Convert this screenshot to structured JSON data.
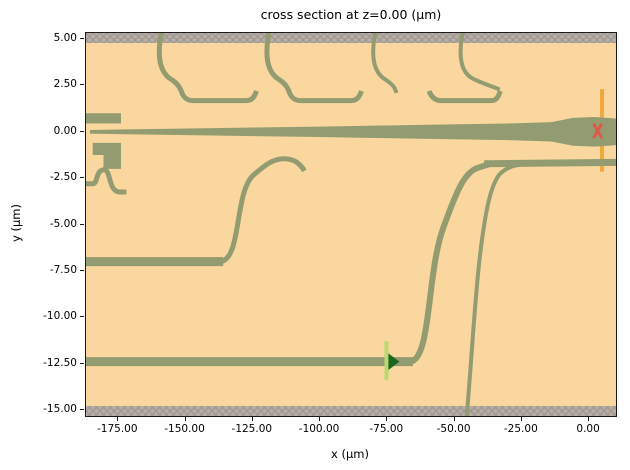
{
  "chart_data": {
    "type": "geometry-cross-section",
    "title": "cross section at z=0.00 (μm)",
    "xlabel": "x (μm)",
    "ylabel": "y (μm)",
    "xlim": [
      -187,
      10
    ],
    "ylim": [
      -15.33,
      5.33
    ],
    "grid": false,
    "x_ticks": [
      {
        "v": -175,
        "label": "-175.00"
      },
      {
        "v": -150,
        "label": "-150.00"
      },
      {
        "v": -125,
        "label": "-125.00"
      },
      {
        "v": -100,
        "label": "-100.00"
      },
      {
        "v": -75,
        "label": "-75.00"
      },
      {
        "v": -50,
        "label": "-50.00"
      },
      {
        "v": -25,
        "label": "-25.00"
      },
      {
        "v": 0,
        "label": "0.00"
      }
    ],
    "y_ticks": [
      {
        "v": 5,
        "label": "5.00"
      },
      {
        "v": 2.5,
        "label": "2.50"
      },
      {
        "v": 0,
        "label": "0.00"
      },
      {
        "v": -2.5,
        "label": "-2.50"
      },
      {
        "v": -5,
        "label": "-5.00"
      },
      {
        "v": -7.5,
        "label": "-7.50"
      },
      {
        "v": -10,
        "label": "-10.00"
      },
      {
        "v": -12.5,
        "label": "-12.50"
      },
      {
        "v": -15,
        "label": "-15.00"
      }
    ],
    "colors": {
      "background": "#f9d79e",
      "structure": "#939b70",
      "pml_fill": "#b6ada6",
      "pml_hatch": "#9d948d",
      "source_line": "#bbda6e",
      "source_arrow": "#1e651e",
      "monitor_line": "#f3a73d",
      "monitor_marker": "#dd5a4a",
      "axis": "#1a1a1a"
    },
    "pml_regions": [
      {
        "y_top": 5.33,
        "y_bot": 4.79
      },
      {
        "y_top": -14.79,
        "y_bot": -15.33
      }
    ],
    "shapes": [
      {
        "name": "top-sbend-1",
        "kind": "path",
        "w": 5,
        "segs": [
          [
            "M",
            -159,
            5.33
          ],
          [
            "C",
            -160.5,
            4.2,
            -160,
            3.2,
            -155,
            2.8
          ],
          [
            "C",
            -152.5,
            2.55,
            -151.8,
            2.3,
            -151.2,
            2.05
          ],
          [
            "C",
            -150.3,
            1.78,
            -149,
            1.68,
            -147,
            1.68
          ],
          [
            "L",
            -127.5,
            1.68
          ],
          [
            "C",
            -125.5,
            1.68,
            -124.6,
            1.82,
            -123.6,
            2.2
          ]
        ]
      },
      {
        "name": "top-sbend-2",
        "kind": "path",
        "w": 5,
        "segs": [
          [
            "M",
            -119,
            5.33
          ],
          [
            "C",
            -120.5,
            4.2,
            -120,
            3.2,
            -115,
            2.8
          ],
          [
            "C",
            -112.5,
            2.55,
            -111.8,
            2.3,
            -111.2,
            2.05
          ],
          [
            "C",
            -110.3,
            1.78,
            -109,
            1.68,
            -107,
            1.68
          ],
          [
            "L",
            -88.5,
            1.68
          ],
          [
            "C",
            -86.5,
            1.68,
            -85.6,
            1.82,
            -84.6,
            2.2
          ]
        ]
      },
      {
        "name": "top-sbend-3",
        "kind": "path",
        "w": 4,
        "segs": [
          [
            "M",
            -79.5,
            5.33
          ],
          [
            "C",
            -81,
            4.2,
            -80.5,
            3.2,
            -75.5,
            2.8
          ],
          [
            "C",
            -73,
            2.55,
            -72.2,
            2.4,
            -71.6,
            2.1
          ]
        ]
      },
      {
        "name": "coupler-bracket",
        "kind": "path",
        "w": 5,
        "segs": [
          [
            "M",
            -59.5,
            2.2
          ],
          [
            "C",
            -58.5,
            1.82,
            -57,
            1.68,
            -55,
            1.68
          ],
          [
            "L",
            -36.5,
            1.68
          ],
          [
            "C",
            -34.6,
            1.68,
            -33.8,
            1.85,
            -33,
            2.2
          ]
        ]
      },
      {
        "name": "top-sbend-4",
        "kind": "path",
        "w": 4,
        "segs": [
          [
            "M",
            -47,
            5.33
          ],
          [
            "C",
            -48.5,
            4.2,
            -48,
            3.2,
            -43,
            2.85
          ],
          [
            "C",
            -39.5,
            2.6,
            -36,
            2.45,
            -33.2,
            2.28
          ]
        ]
      },
      {
        "name": "left-stub",
        "kind": "polygon",
        "pts": [
          [
            -187,
            1.0
          ],
          [
            -174,
            1.0
          ],
          [
            -174,
            0.45
          ],
          [
            -187,
            0.45
          ]
        ]
      },
      {
        "name": "central-taper",
        "kind": "polygon",
        "pts": [
          [
            -185.5,
            0.1
          ],
          [
            -140,
            0.2
          ],
          [
            -100,
            0.28
          ],
          [
            -60,
            0.38
          ],
          [
            -30,
            0.45
          ],
          [
            -14,
            0.52
          ],
          [
            -6,
            0.75
          ],
          [
            2,
            0.8
          ],
          [
            10,
            0.72
          ],
          [
            10,
            -0.72
          ],
          [
            2,
            -0.8
          ],
          [
            -6,
            -0.75
          ],
          [
            -14,
            -0.52
          ],
          [
            -30,
            -0.45
          ],
          [
            -60,
            -0.38
          ],
          [
            -100,
            -0.28
          ],
          [
            -140,
            -0.2
          ],
          [
            -185.5,
            -0.1
          ]
        ]
      },
      {
        "name": "left-block",
        "kind": "polygon",
        "pts": [
          [
            -184.5,
            -0.6
          ],
          [
            -174,
            -0.6
          ],
          [
            -174,
            -2.0
          ],
          [
            -180.5,
            -2.0
          ],
          [
            -180.5,
            -1.25
          ],
          [
            -184.5,
            -1.25
          ]
        ]
      },
      {
        "name": "left-squiggle",
        "kind": "path",
        "w": 5,
        "segs": [
          [
            "M",
            -187,
            -2.8
          ],
          [
            "L",
            -184.5,
            -2.8
          ],
          [
            "C",
            -182.5,
            -2.8,
            -183.5,
            -2.1,
            -180.5,
            -2.05
          ],
          [
            "C",
            -177.5,
            -2.0,
            -179,
            -3.2,
            -174.5,
            -3.25
          ],
          [
            "L",
            -172,
            -3.25
          ]
        ]
      },
      {
        "name": "bus-waveguide-mid",
        "kind": "path",
        "w": 9,
        "segs": [
          [
            "M",
            -187,
            -7
          ],
          [
            "L",
            -136,
            -7
          ]
        ]
      },
      {
        "name": "mid-sbend",
        "kind": "path",
        "w": 5,
        "segs": [
          [
            "M",
            -137,
            -7
          ],
          [
            "C",
            -129,
            -6.85,
            -132,
            -3.2,
            -124.5,
            -2.3
          ],
          [
            "C",
            -120.5,
            -1.8,
            -117.5,
            -1.45,
            -113.5,
            -1.45
          ],
          [
            "C",
            -110,
            -1.45,
            -107.8,
            -1.65,
            -105.8,
            -2.1
          ]
        ]
      },
      {
        "name": "bus-waveguide-bottom",
        "kind": "path",
        "w": 9,
        "segs": [
          [
            "M",
            -187,
            -12.4
          ],
          [
            "L",
            -65.5,
            -12.4
          ]
        ]
      },
      {
        "name": "bottom-sbend",
        "kind": "path",
        "w": 6,
        "segs": [
          [
            "M",
            -66.5,
            -12.4
          ],
          [
            "C",
            -58.5,
            -12.25,
            -60.5,
            -7.6,
            -54,
            -5.1
          ],
          [
            "C",
            -49.5,
            -3.3,
            -46.5,
            -2.2,
            -41.5,
            -1.95
          ],
          [
            "C",
            -40,
            -1.88,
            -39,
            -1.82,
            -37.5,
            -1.78
          ]
        ]
      },
      {
        "name": "right-band",
        "kind": "path",
        "w": 7,
        "segs": [
          [
            "M",
            -39,
            -1.72
          ],
          [
            "L",
            10,
            -1.65
          ]
        ]
      },
      {
        "name": "bottom-entry-curve",
        "kind": "path",
        "w": 4,
        "segs": [
          [
            "M",
            -45.5,
            -15.33
          ],
          [
            "C",
            -43.5,
            -12,
            -42.5,
            -9,
            -40.5,
            -6.6
          ],
          [
            "C",
            -38.5,
            -4.2,
            -36.5,
            -2.8,
            -33,
            -2.25
          ],
          [
            "C",
            -30,
            -1.85,
            -27,
            -1.78,
            -23,
            -1.73
          ]
        ]
      }
    ],
    "source": {
      "line": {
        "x": -75.3,
        "y1": -11.3,
        "y2": -13.4,
        "w": 4
      },
      "arrow": [
        [
          -74.6,
          -11.95
        ],
        [
          -74.6,
          -12.85
        ],
        [
          -70.5,
          -12.4
        ]
      ]
    },
    "monitor": {
      "line": {
        "x": 4.8,
        "y1": 2.3,
        "y2": -2.15,
        "w": 4
      },
      "cross": {
        "cx": 3.2,
        "cy": 0.05,
        "dx": 1.3,
        "dy": 0.33,
        "w": 3
      }
    }
  }
}
